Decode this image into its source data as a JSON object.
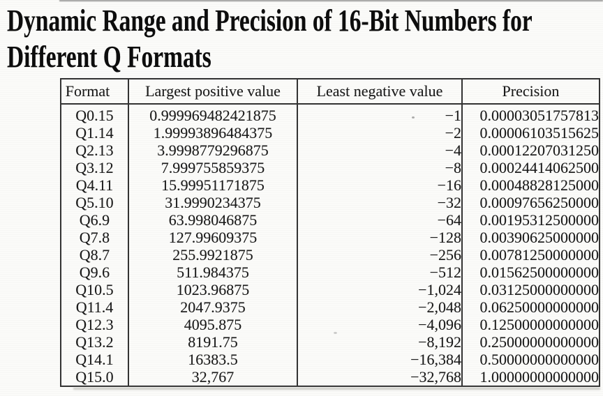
{
  "colors": {
    "background": "#fbfbf9",
    "ink": "#1a1a1a",
    "border": "#333333"
  },
  "title": {
    "full": "Dynamic Range and Precision of 16-Bit Numbers for Different Q Formats",
    "line1": "Dynamic Range and Precision of 16-Bit Numbers for",
    "line2": "Different Q Formats"
  },
  "table": {
    "columns": [
      "Format",
      "Largest positive value",
      "Least negative value",
      "Precision"
    ],
    "rows": [
      {
        "format": "Q0.15",
        "largest_positive_value": "0.999969482421875",
        "least_negative_value": "−1",
        "precision": "0.00003051757813"
      },
      {
        "format": "Q1.14",
        "largest_positive_value": "1.99993896484375",
        "least_negative_value": "−2",
        "precision": "0.00006103515625"
      },
      {
        "format": "Q2.13",
        "largest_positive_value": "3.9998779296875",
        "least_negative_value": "−4",
        "precision": "0.00012207031250"
      },
      {
        "format": "Q3.12",
        "largest_positive_value": "7.999755859375",
        "least_negative_value": "−8",
        "precision": "0.00024414062500"
      },
      {
        "format": "Q4.11",
        "largest_positive_value": "15.99951171875",
        "least_negative_value": "−16",
        "precision": "0.00048828125000"
      },
      {
        "format": "Q5.10",
        "largest_positive_value": "31.9990234375",
        "least_negative_value": "−32",
        "precision": "0.00097656250000"
      },
      {
        "format": "Q6.9",
        "largest_positive_value": "63.998046875",
        "least_negative_value": "−64",
        "precision": "0.00195312500000"
      },
      {
        "format": "Q7.8",
        "largest_positive_value": "127.99609375",
        "least_negative_value": "−128",
        "precision": "0.00390625000000"
      },
      {
        "format": "Q8.7",
        "largest_positive_value": "255.9921875",
        "least_negative_value": "−256",
        "precision": "0.00781250000000"
      },
      {
        "format": "Q9.6",
        "largest_positive_value": "511.984375",
        "least_negative_value": "−512",
        "precision": "0.01562500000000"
      },
      {
        "format": "Q10.5",
        "largest_positive_value": "1023.96875",
        "least_negative_value": "−1,024",
        "precision": "0.03125000000000"
      },
      {
        "format": "Q11.4",
        "largest_positive_value": "2047.9375",
        "least_negative_value": "−2,048",
        "precision": "0.06250000000000"
      },
      {
        "format": "Q12.3",
        "largest_positive_value": "4095.875",
        "least_negative_value": "−4,096",
        "precision": "0.12500000000000"
      },
      {
        "format": "Q13.2",
        "largest_positive_value": "8191.75",
        "least_negative_value": "−8,192",
        "precision": "0.25000000000000"
      },
      {
        "format": "Q14.1",
        "largest_positive_value": "16383.5",
        "least_negative_value": "−16,384",
        "precision": "0.50000000000000"
      },
      {
        "format": "Q15.0",
        "largest_positive_value": "32,767",
        "least_negative_value": "−32,768",
        "precision": "1.00000000000000"
      }
    ]
  }
}
